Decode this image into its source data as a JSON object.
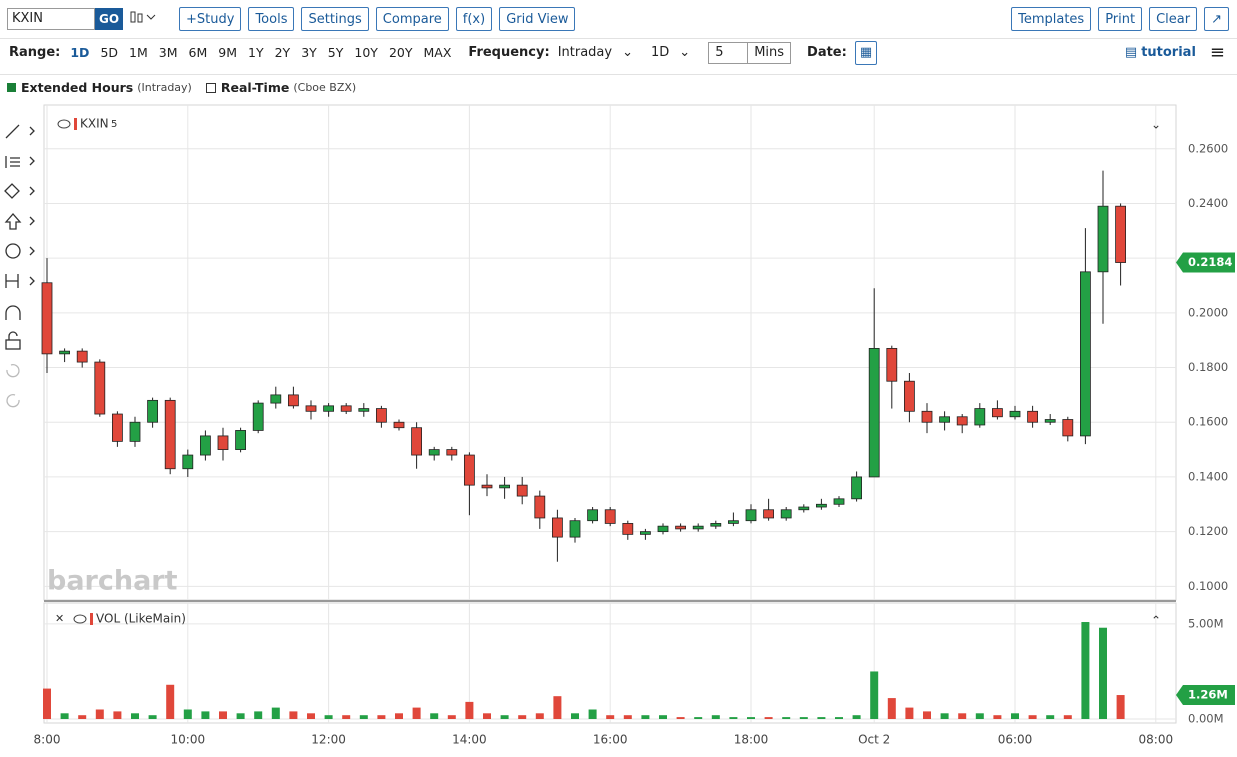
{
  "toolbar": {
    "symbol": "KXIN",
    "go": "GO",
    "buttons": [
      "+Study",
      "Tools",
      "Settings",
      "Compare",
      "f(x)",
      "Grid View"
    ],
    "right_buttons": [
      "Templates",
      "Print",
      "Clear"
    ]
  },
  "range_bar": {
    "range_label": "Range:",
    "ranges": [
      "1D",
      "5D",
      "1M",
      "3M",
      "6M",
      "9M",
      "1Y",
      "2Y",
      "3Y",
      "5Y",
      "10Y",
      "20Y",
      "MAX"
    ],
    "frequency_label": "Frequency:",
    "frequency": "Intraday",
    "period": "1D",
    "interval": "5",
    "interval_unit": "Mins",
    "date_label": "Date:",
    "tutorial": "tutorial"
  },
  "legend": {
    "extended": "Extended Hours",
    "extended_note": "(Intraday)",
    "realtime": "Real-Time",
    "realtime_note": "(Cboe BZX)"
  },
  "chart_data": {
    "type": "candlestick",
    "symbol_label": "KXIN",
    "interval_label": "5",
    "volume_label": "VOL (LikeMain)",
    "watermark": "barchart",
    "up_color": "#23a045",
    "down_color": "#e0473a",
    "categories": [
      "8:00",
      null,
      null,
      null,
      null,
      null,
      null,
      null,
      "10:00",
      null,
      null,
      null,
      null,
      null,
      null,
      null,
      "12:00",
      null,
      null,
      null,
      null,
      null,
      null,
      null,
      "14:00",
      null,
      null,
      null,
      null,
      null,
      null,
      null,
      "16:00",
      null,
      null,
      null,
      null,
      null,
      null,
      null,
      "18:00",
      null,
      null,
      null,
      null,
      null,
      null,
      "Oct 2",
      null,
      null,
      null,
      null,
      null,
      null,
      null,
      "06:00",
      null,
      null,
      null,
      null,
      null,
      null,
      null,
      "08:00"
    ],
    "open": [
      0.211,
      0.185,
      0.186,
      0.182,
      0.163,
      0.153,
      0.16,
      0.168,
      0.143,
      0.148,
      0.155,
      0.15,
      0.157,
      0.167,
      0.17,
      0.166,
      0.164,
      0.166,
      0.164,
      0.165,
      0.16,
      0.158,
      0.148,
      0.15,
      0.148,
      0.137,
      0.136,
      0.137,
      0.133,
      0.125,
      0.118,
      0.124,
      0.128,
      0.123,
      0.119,
      0.12,
      0.122,
      0.121,
      0.122,
      0.123,
      0.124,
      0.128,
      0.125,
      0.128,
      0.129,
      0.13,
      0.132,
      0.14,
      0.187,
      0.175,
      0.164,
      0.16,
      0.162,
      0.159,
      0.165,
      0.162,
      0.164,
      0.16,
      0.161,
      0.155,
      0.215,
      0.239,
      null,
      null
    ],
    "high": [
      0.22,
      0.187,
      0.187,
      0.183,
      0.164,
      0.162,
      0.169,
      0.169,
      0.15,
      0.157,
      0.158,
      0.158,
      0.168,
      0.173,
      0.173,
      0.168,
      0.167,
      0.167,
      0.167,
      0.166,
      0.161,
      0.16,
      0.151,
      0.151,
      0.149,
      0.141,
      0.14,
      0.14,
      0.135,
      0.128,
      0.125,
      0.129,
      0.129,
      0.124,
      0.121,
      0.123,
      0.123,
      0.123,
      0.124,
      0.127,
      0.13,
      0.132,
      0.129,
      0.13,
      0.132,
      0.133,
      0.142,
      0.209,
      0.188,
      0.178,
      0.167,
      0.164,
      0.163,
      0.167,
      0.168,
      0.166,
      0.166,
      0.163,
      0.162,
      0.231,
      0.252,
      0.24,
      null,
      null
    ],
    "low": [
      0.178,
      0.182,
      0.18,
      0.162,
      0.151,
      0.151,
      0.158,
      0.141,
      0.14,
      0.146,
      0.146,
      0.149,
      0.156,
      0.165,
      0.165,
      0.161,
      0.162,
      0.163,
      0.162,
      0.158,
      0.157,
      0.143,
      0.146,
      0.146,
      0.126,
      0.133,
      0.132,
      0.13,
      0.121,
      0.109,
      0.116,
      0.123,
      0.122,
      0.117,
      0.117,
      0.119,
      0.12,
      0.12,
      0.121,
      0.122,
      0.123,
      0.124,
      0.124,
      0.127,
      0.128,
      0.129,
      0.131,
      0.14,
      0.165,
      0.16,
      0.156,
      0.157,
      0.156,
      0.158,
      0.161,
      0.161,
      0.158,
      0.159,
      0.153,
      0.152,
      0.196,
      0.21,
      null,
      null
    ],
    "close": [
      0.185,
      0.186,
      0.182,
      0.163,
      0.153,
      0.16,
      0.168,
      0.143,
      0.148,
      0.155,
      0.15,
      0.157,
      0.167,
      0.17,
      0.166,
      0.164,
      0.166,
      0.164,
      0.165,
      0.16,
      0.158,
      0.148,
      0.15,
      0.148,
      0.137,
      0.136,
      0.137,
      0.133,
      0.125,
      0.118,
      0.124,
      0.128,
      0.123,
      0.119,
      0.12,
      0.122,
      0.121,
      0.122,
      0.123,
      0.124,
      0.128,
      0.125,
      0.128,
      0.129,
      0.13,
      0.132,
      0.14,
      0.187,
      0.175,
      0.164,
      0.16,
      0.162,
      0.159,
      0.165,
      0.162,
      0.164,
      0.16,
      0.161,
      0.155,
      0.215,
      0.239,
      0.2184,
      null,
      null
    ],
    "volume": [
      1600000,
      300000,
      200000,
      500000,
      400000,
      300000,
      200000,
      1800000,
      500000,
      400000,
      400000,
      300000,
      400000,
      600000,
      400000,
      300000,
      200000,
      200000,
      200000,
      200000,
      300000,
      600000,
      300000,
      200000,
      900000,
      300000,
      200000,
      200000,
      300000,
      1200000,
      300000,
      500000,
      200000,
      200000,
      200000,
      200000,
      100000,
      100000,
      200000,
      100000,
      100000,
      100000,
      100000,
      100000,
      100000,
      100000,
      200000,
      2500000,
      1100000,
      600000,
      400000,
      300000,
      300000,
      300000,
      200000,
      300000,
      200000,
      200000,
      200000,
      5100000,
      4800000,
      1260000,
      null,
      null
    ],
    "last_volume_label": "1.26M",
    "ylim": [
      0.095,
      0.276
    ],
    "yticks": [
      {
        "value": 0.1,
        "label": "0.1000"
      },
      {
        "value": 0.12,
        "label": "0.1200"
      },
      {
        "value": 0.14,
        "label": "0.1400"
      },
      {
        "value": 0.16,
        "label": "0.1600"
      },
      {
        "value": 0.18,
        "label": "0.1800"
      },
      {
        "value": 0.2,
        "label": "0.2000"
      },
      {
        "value": 0.22,
        "label": "0.2200"
      },
      {
        "value": 0.24,
        "label": "0.2400"
      },
      {
        "value": 0.26,
        "label": "0.2600"
      }
    ],
    "volume_ylim": [
      -210000,
      6100000
    ],
    "volume_yticks": [
      {
        "value": 0,
        "label": "0.00M"
      },
      {
        "value": 5000000,
        "label": "5.00M"
      }
    ],
    "grid": true
  }
}
